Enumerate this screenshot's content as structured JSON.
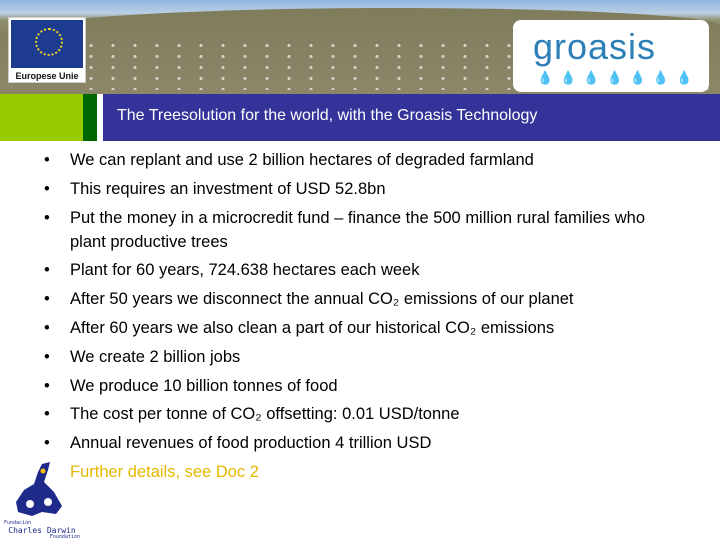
{
  "header": {
    "eu_logo_label": "Europese Unie",
    "brand_logo": "groasis",
    "title": "The Treesolution for the world, with the Groasis Technology"
  },
  "bullets": [
    "We can replant and use 2 billion hectares of degraded farmland",
    "This requires an investment of USD 52.8bn",
    "Put the money in a microcredit fund – finance the 500 million rural families who plant productive trees",
    "Plant for 60 years, 724.638 hectares each week",
    "After 50 years we disconnect the annual CO₂ emissions of our planet",
    "After 60 years we also clean a part of our historical CO₂ emissions",
    "We create 2 billion jobs",
    "We produce 10 billion tonnes of food",
    "The cost per tonne of CO₂ offsetting: 0.01 USD/tonne",
    "Annual revenues of food production 4 trillion USD"
  ],
  "bullet_symbol": "•",
  "further_details": "Further details, see Doc 2",
  "footer_logo": {
    "line1": "Fundación",
    "line2": "Charles Darwin",
    "line3": "Foundation"
  },
  "colors": {
    "navy": "#333399",
    "lime": "#99cc00",
    "dark_green": "#006600",
    "link_yellow": "#e6b800"
  }
}
